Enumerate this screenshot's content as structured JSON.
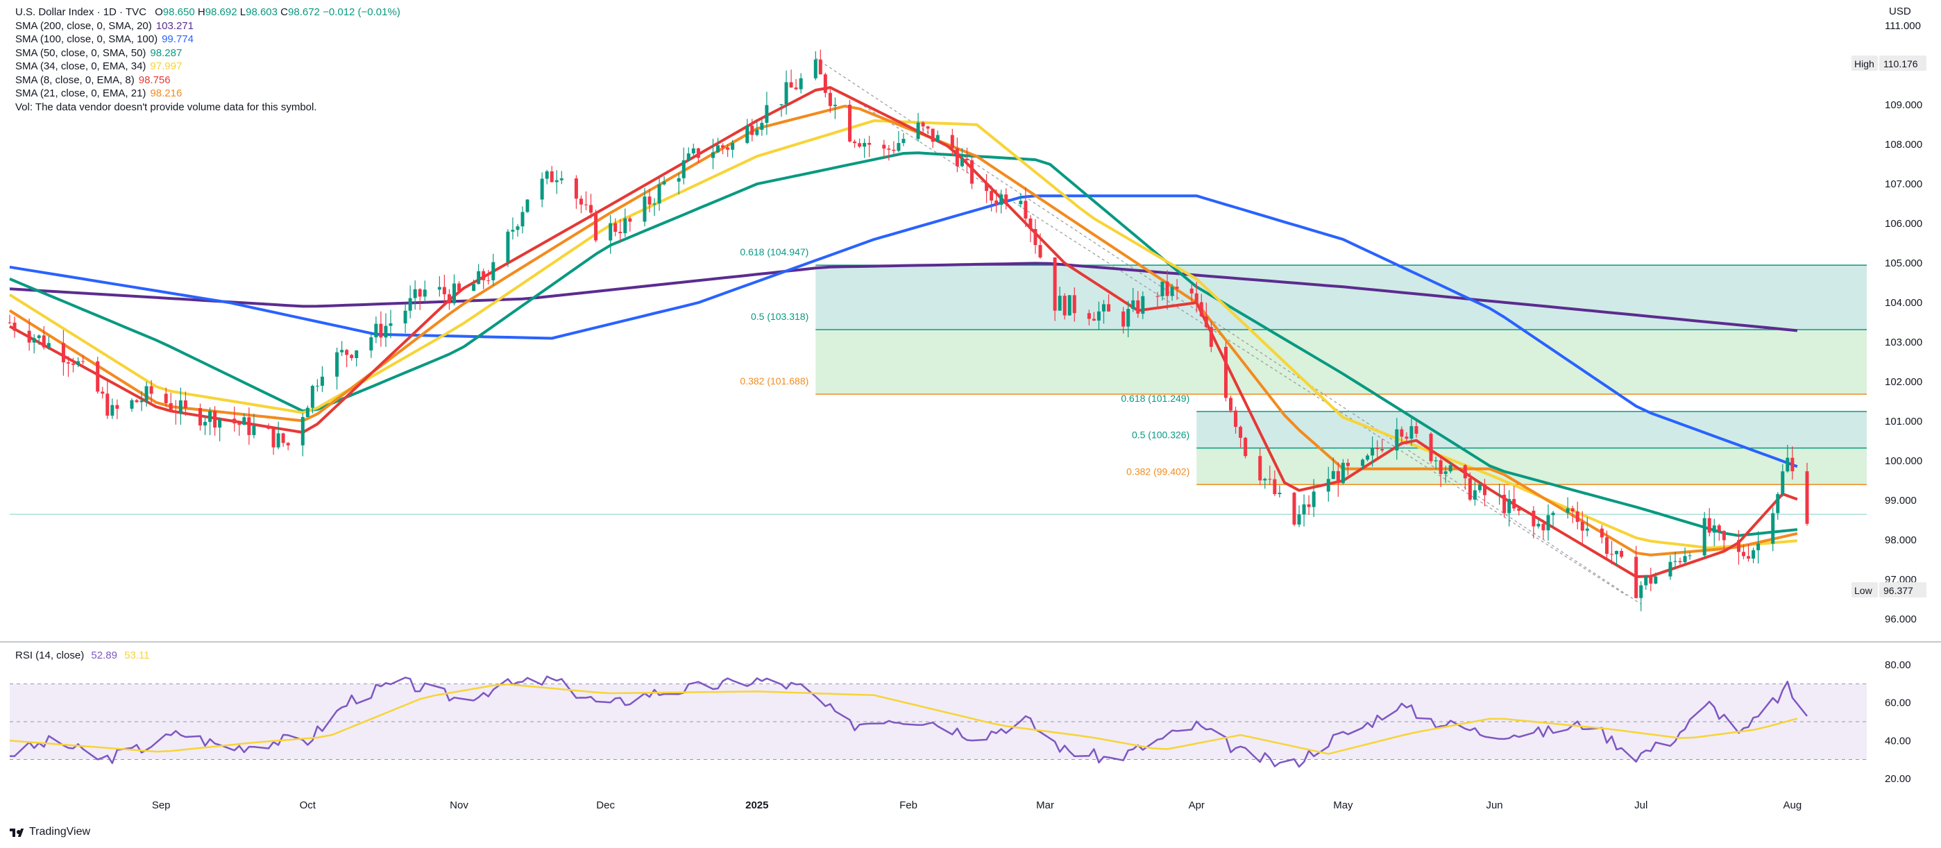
{
  "header": {
    "symbol": "U.S. Dollar Index · 1D · TVC",
    "open_label": "O",
    "open": "98.650",
    "high_label": "H",
    "high": "98.692",
    "low_label": "L",
    "low": "98.603",
    "close_label": "C",
    "close": "98.672",
    "change": "−0.012 (−0.01%)",
    "indicators": [
      {
        "label": "SMA (200, close, 0, SMA, 20)",
        "value": "103.271",
        "color": "#5b2c8f"
      },
      {
        "label": "SMA (100, close, 0, SMA, 100)",
        "value": "99.774",
        "color": "#2962ff"
      },
      {
        "label": "SMA (50, close, 0, SMA, 50)",
        "value": "98.287",
        "color": "#089981"
      },
      {
        "label": "SMA (34, close, 0, EMA, 34)",
        "value": "97.997",
        "color": "#f7d437"
      },
      {
        "label": "SMA (8, close, 0, EMA, 8)",
        "value": "98.756",
        "color": "#e53935"
      },
      {
        "label": "SMA (21, close, 0, EMA, 21)",
        "value": "98.216",
        "color": "#f28b1e"
      }
    ],
    "vol_note": "Vol: The data vendor doesn't provide volume data for this symbol."
  },
  "currency": "USD",
  "rsi_legend": {
    "label": "RSI (14, close)",
    "value": "52.89",
    "ma_value": "53.11"
  },
  "footer": {
    "brand": "TradingView"
  },
  "colors": {
    "up": "#089981",
    "down": "#f23645",
    "sma200": "#5b2c8f",
    "sma100": "#2962ff",
    "sma50": "#089981",
    "ema34": "#f7d437",
    "ema8": "#e53935",
    "ema21": "#f28b1e",
    "rsi": "#7e57c2",
    "rsi_ma": "#f7d437"
  },
  "chart_data": {
    "type": "candlestick",
    "timeframe": "1D",
    "price_axis": {
      "range": [
        95.6,
        111.3
      ],
      "ticks": [
        "111.000",
        "110.000",
        "109.000",
        "108.000",
        "107.000",
        "106.000",
        "105.000",
        "104.000",
        "103.000",
        "102.000",
        "101.000",
        "100.000",
        "99.000",
        "98.000",
        "97.000",
        "96.000"
      ]
    },
    "x_axis": {
      "labels": [
        {
          "text": "Sep",
          "date": "2024-09-01"
        },
        {
          "text": "Oct",
          "date": "2024-10-01"
        },
        {
          "text": "Nov",
          "date": "2024-11-01"
        },
        {
          "text": "Dec",
          "date": "2024-12-01"
        },
        {
          "text": "2025",
          "date": "2025-01-01"
        },
        {
          "text": "Feb",
          "date": "2025-02-01"
        },
        {
          "text": "Mar",
          "date": "2025-03-01"
        },
        {
          "text": "Apr",
          "date": "2025-04-01"
        },
        {
          "text": "May",
          "date": "2025-05-01"
        },
        {
          "text": "Jun",
          "date": "2025-06-01"
        },
        {
          "text": "Jul",
          "date": "2025-07-01"
        },
        {
          "text": "Aug",
          "date": "2025-08-01"
        }
      ]
    },
    "close_path": [
      [
        "2024-08-01",
        103.5
      ],
      [
        "2024-08-14",
        102.6
      ],
      [
        "2024-08-22",
        101.2
      ],
      [
        "2024-08-30",
        101.7
      ],
      [
        "2024-09-06",
        101.2
      ],
      [
        "2024-09-13",
        101.1
      ],
      [
        "2024-09-20",
        100.8
      ],
      [
        "2024-09-27",
        100.4
      ],
      [
        "2024-10-04",
        102.4
      ],
      [
        "2024-10-11",
        102.9
      ],
      [
        "2024-10-18",
        103.5
      ],
      [
        "2024-10-25",
        104.3
      ],
      [
        "2024-11-01",
        104.2
      ],
      [
        "2024-11-08",
        104.8
      ],
      [
        "2024-11-15",
        106.7
      ],
      [
        "2024-11-22",
        107.4
      ],
      [
        "2024-11-29",
        105.8
      ],
      [
        "2024-12-06",
        106.0
      ],
      [
        "2024-12-13",
        107.0
      ],
      [
        "2024-12-20",
        107.8
      ],
      [
        "2024-12-27",
        108.0
      ],
      [
        "2025-01-03",
        108.9
      ],
      [
        "2025-01-10",
        109.6
      ],
      [
        "2025-01-13",
        109.9
      ],
      [
        "2025-01-20",
        108.3
      ],
      [
        "2025-01-27",
        107.8
      ],
      [
        "2025-02-03",
        108.4
      ],
      [
        "2025-02-10",
        107.9
      ],
      [
        "2025-02-17",
        106.6
      ],
      [
        "2025-02-24",
        106.8
      ],
      [
        "2025-03-03",
        104.0
      ],
      [
        "2025-03-10",
        103.8
      ],
      [
        "2025-03-17",
        103.6
      ],
      [
        "2025-03-24",
        104.3
      ],
      [
        "2025-03-31",
        104.2
      ],
      [
        "2025-04-04",
        102.9
      ],
      [
        "2025-04-11",
        100.3
      ],
      [
        "2025-04-21",
        98.4
      ],
      [
        "2025-04-28",
        99.6
      ],
      [
        "2025-05-05",
        99.8
      ],
      [
        "2025-05-12",
        101.0
      ],
      [
        "2025-05-19",
        100.2
      ],
      [
        "2025-05-26",
        99.3
      ],
      [
        "2025-06-02",
        99.0
      ],
      [
        "2025-06-09",
        98.3
      ],
      [
        "2025-06-16",
        98.8
      ],
      [
        "2025-06-23",
        98.0
      ],
      [
        "2025-06-30",
        96.8
      ],
      [
        "2025-07-07",
        97.3
      ],
      [
        "2025-07-14",
        98.3
      ],
      [
        "2025-07-21",
        97.6
      ],
      [
        "2025-07-25",
        97.9
      ],
      [
        "2025-07-31",
        100.0
      ],
      [
        "2025-08-04",
        98.67
      ]
    ],
    "period_high": {
      "label": "High",
      "value": "110.176",
      "date": "2025-01-13"
    },
    "period_low": {
      "label": "Low",
      "value": "96.377",
      "date": "2025-07-01"
    },
    "moving_averages": {
      "sma200": [
        [
          "2024-08-01",
          104.35
        ],
        [
          "2024-10-01",
          103.9
        ],
        [
          "2024-11-15",
          104.1
        ],
        [
          "2025-01-15",
          104.9
        ],
        [
          "2025-03-01",
          105.0
        ],
        [
          "2025-05-01",
          104.4
        ],
        [
          "2025-08-04",
          103.27
        ]
      ],
      "sma100": [
        [
          "2024-08-01",
          104.9
        ],
        [
          "2024-09-15",
          104.0
        ],
        [
          "2024-10-15",
          103.2
        ],
        [
          "2024-11-20",
          103.1
        ],
        [
          "2024-12-20",
          104.0
        ],
        [
          "2025-01-25",
          105.6
        ],
        [
          "2025-02-25",
          106.7
        ],
        [
          "2025-04-01",
          106.7
        ],
        [
          "2025-05-01",
          105.6
        ],
        [
          "2025-06-01",
          103.8
        ],
        [
          "2025-07-01",
          101.3
        ],
        [
          "2025-08-04",
          99.77
        ]
      ],
      "sma50": [
        [
          "2024-08-01",
          104.6
        ],
        [
          "2024-09-01",
          103.0
        ],
        [
          "2024-10-01",
          101.2
        ],
        [
          "2024-11-01",
          102.8
        ],
        [
          "2024-12-01",
          105.4
        ],
        [
          "2025-01-01",
          107.0
        ],
        [
          "2025-02-01",
          107.8
        ],
        [
          "2025-03-01",
          107.6
        ],
        [
          "2025-04-01",
          104.4
        ],
        [
          "2025-05-01",
          102.2
        ],
        [
          "2025-06-01",
          99.8
        ],
        [
          "2025-07-01",
          98.8
        ],
        [
          "2025-07-20",
          98.1
        ],
        [
          "2025-08-04",
          98.29
        ]
      ],
      "ema34": [
        [
          "2024-08-01",
          104.2
        ],
        [
          "2024-09-01",
          101.8
        ],
        [
          "2024-10-01",
          101.2
        ],
        [
          "2024-11-01",
          103.4
        ],
        [
          "2024-12-01",
          105.9
        ],
        [
          "2025-01-01",
          107.7
        ],
        [
          "2025-01-25",
          108.6
        ],
        [
          "2025-02-15",
          108.5
        ],
        [
          "2025-03-10",
          106.2
        ],
        [
          "2025-04-01",
          104.6
        ],
        [
          "2025-05-01",
          101.1
        ],
        [
          "2025-06-01",
          99.6
        ],
        [
          "2025-07-01",
          98.0
        ],
        [
          "2025-07-15",
          97.8
        ],
        [
          "2025-08-04",
          98.0
        ]
      ],
      "ema21": [
        [
          "2024-08-01",
          103.8
        ],
        [
          "2024-09-01",
          101.4
        ],
        [
          "2024-10-01",
          101.0
        ],
        [
          "2024-11-01",
          103.9
        ],
        [
          "2024-12-01",
          106.2
        ],
        [
          "2025-01-01",
          108.4
        ],
        [
          "2025-01-20",
          109.0
        ],
        [
          "2025-02-15",
          107.7
        ],
        [
          "2025-03-10",
          105.8
        ],
        [
          "2025-04-01",
          104.0
        ],
        [
          "2025-04-20",
          101.0
        ],
        [
          "2025-05-01",
          99.8
        ],
        [
          "2025-06-01",
          99.8
        ],
        [
          "2025-07-01",
          97.6
        ],
        [
          "2025-07-20",
          97.8
        ],
        [
          "2025-08-04",
          98.22
        ]
      ],
      "ema8": [
        [
          "2024-08-01",
          103.4
        ],
        [
          "2024-09-01",
          101.3
        ],
        [
          "2024-10-01",
          100.7
        ],
        [
          "2024-11-01",
          104.3
        ],
        [
          "2024-12-01",
          106.4
        ],
        [
          "2025-01-01",
          108.6
        ],
        [
          "2025-01-15",
          109.5
        ],
        [
          "2025-02-10",
          107.9
        ],
        [
          "2025-03-05",
          105.0
        ],
        [
          "2025-03-20",
          103.8
        ],
        [
          "2025-04-01",
          104.0
        ],
        [
          "2025-04-20",
          99.2
        ],
        [
          "2025-05-01",
          99.5
        ],
        [
          "2025-05-15",
          100.6
        ],
        [
          "2025-06-01",
          99.2
        ],
        [
          "2025-07-01",
          97.0
        ],
        [
          "2025-07-20",
          97.8
        ],
        [
          "2025-07-31",
          99.3
        ],
        [
          "2025-08-04",
          98.76
        ]
      ]
    },
    "fibonacci": [
      {
        "level": "0.618 (104.947)",
        "price": 104.947,
        "start": "2025-01-13",
        "color": "#089981",
        "fill": "#cbe8e4"
      },
      {
        "level": "0.5 (103.318)",
        "price": 103.318,
        "start": "2025-01-13",
        "color": "#089981",
        "fill": "#d6efd7"
      },
      {
        "level": "0.382 (101.688)",
        "price": 101.688,
        "start": "2025-01-13",
        "color": "#f28b1e"
      },
      {
        "level": "0.618 (101.249)",
        "price": 101.249,
        "start": "2025-04-01",
        "color": "#089981",
        "fill": "#cbe8e4"
      },
      {
        "level": "0.5 (100.326)",
        "price": 100.326,
        "start": "2025-04-01",
        "color": "#089981",
        "fill": "#d6efd7"
      },
      {
        "level": "0.382 (99.402)",
        "price": 99.402,
        "start": "2025-04-01",
        "color": "#f28b1e"
      }
    ],
    "trendlines": [
      {
        "from": [
          "2025-01-13",
          110.18
        ],
        "to": [
          "2025-07-01",
          96.38
        ]
      },
      {
        "from": [
          "2025-01-20",
          109.2
        ],
        "to": [
          "2025-06-28",
          96.6
        ]
      }
    ],
    "horizontal_line": 98.65,
    "rsi": {
      "axis_ticks": [
        "80.00",
        "60.00",
        "40.00",
        "20.00"
      ],
      "range": [
        17,
        83
      ],
      "bands": [
        30,
        50,
        70
      ],
      "series": [
        [
          "2024-08-01",
          33
        ],
        [
          "2024-08-10",
          40
        ],
        [
          "2024-08-20",
          30
        ],
        [
          "2024-08-28",
          36
        ],
        [
          "2024-09-05",
          44
        ],
        [
          "2024-09-15",
          36
        ],
        [
          "2024-09-25",
          40
        ],
        [
          "2024-10-01",
          40
        ],
        [
          "2024-10-10",
          62
        ],
        [
          "2024-10-20",
          71
        ],
        [
          "2024-11-01",
          62
        ],
        [
          "2024-11-10",
          69
        ],
        [
          "2024-11-20",
          72
        ],
        [
          "2024-12-01",
          58
        ],
        [
          "2024-12-10",
          65
        ],
        [
          "2024-12-20",
          68
        ],
        [
          "2025-01-01",
          72
        ],
        [
          "2025-01-10",
          68
        ],
        [
          "2025-01-20",
          48
        ],
        [
          "2025-01-27",
          52
        ],
        [
          "2025-02-05",
          51
        ],
        [
          "2025-02-15",
          42
        ],
        [
          "2025-02-25",
          51
        ],
        [
          "2025-03-05",
          35
        ],
        [
          "2025-03-15",
          30
        ],
        [
          "2025-03-25",
          41
        ],
        [
          "2025-04-01",
          48
        ],
        [
          "2025-04-10",
          34
        ],
        [
          "2025-04-20",
          26
        ],
        [
          "2025-04-28",
          40
        ],
        [
          "2025-05-05",
          47
        ],
        [
          "2025-05-12",
          59
        ],
        [
          "2025-05-20",
          50
        ],
        [
          "2025-05-30",
          44
        ],
        [
          "2025-06-10",
          44
        ],
        [
          "2025-06-20",
          49
        ],
        [
          "2025-06-30",
          32
        ],
        [
          "2025-07-07",
          40
        ],
        [
          "2025-07-15",
          59
        ],
        [
          "2025-07-22",
          44
        ],
        [
          "2025-07-31",
          68
        ],
        [
          "2025-08-04",
          52.89
        ]
      ],
      "ma_series": [
        [
          "2024-08-01",
          40
        ],
        [
          "2024-09-01",
          34
        ],
        [
          "2024-09-20",
          39
        ],
        [
          "2024-10-05",
          42
        ],
        [
          "2024-10-25",
          63
        ],
        [
          "2024-11-10",
          70
        ],
        [
          "2024-12-01",
          65
        ],
        [
          "2025-01-01",
          66
        ],
        [
          "2025-01-25",
          64
        ],
        [
          "2025-02-20",
          48
        ],
        [
          "2025-03-10",
          42
        ],
        [
          "2025-03-25",
          35
        ],
        [
          "2025-04-10",
          43
        ],
        [
          "2025-04-28",
          33
        ],
        [
          "2025-05-15",
          44
        ],
        [
          "2025-06-01",
          52
        ],
        [
          "2025-06-25",
          46
        ],
        [
          "2025-07-10",
          41
        ],
        [
          "2025-07-25",
          46
        ],
        [
          "2025-08-04",
          53.11
        ]
      ]
    }
  }
}
